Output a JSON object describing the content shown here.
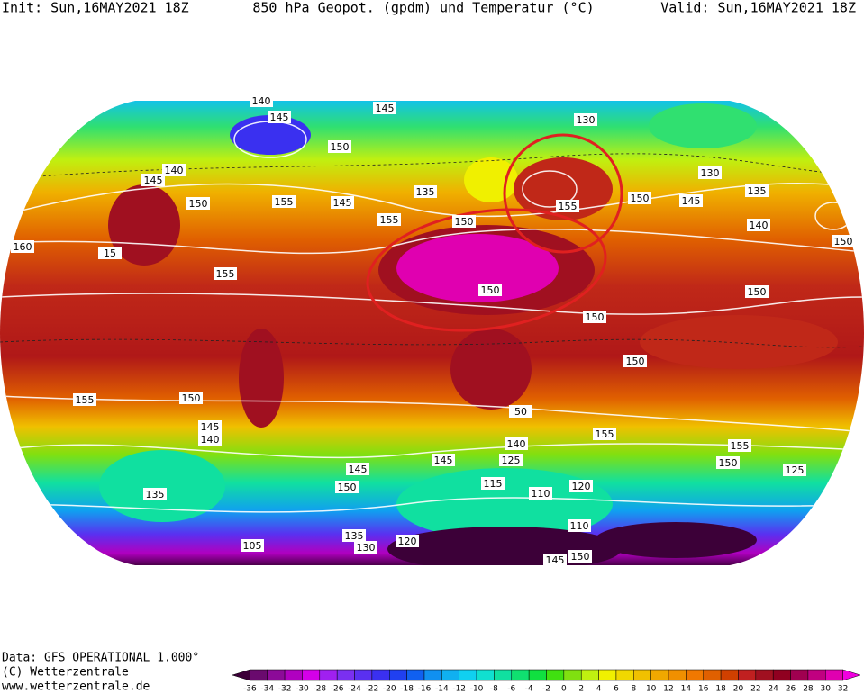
{
  "header": {
    "init": "Init: Sun,16MAY2021 18Z",
    "title": "850 hPa Geopot. (gpdm) und Temperatur (°C)",
    "valid": "Valid: Sun,16MAY2021 18Z"
  },
  "footer": {
    "source": "Data: GFS OPERATIONAL 1.000°",
    "copyright": "(C) Wetterzentrale",
    "url": "www.wetterzentrale.de"
  },
  "colorbar": {
    "ticks": [
      -36,
      -34,
      -32,
      -30,
      -28,
      -26,
      -24,
      -22,
      -20,
      -18,
      -16,
      -14,
      -12,
      -10,
      -8,
      -6,
      -4,
      -2,
      0,
      2,
      4,
      6,
      8,
      10,
      12,
      14,
      16,
      18,
      20,
      22,
      24,
      26,
      28,
      30,
      32
    ],
    "colors": [
      "#3c0038",
      "#6a0a6e",
      "#8c0a98",
      "#b000c0",
      "#d400e8",
      "#a020f0",
      "#7a30f0",
      "#5a30f0",
      "#3a30f0",
      "#2040f0",
      "#1060f0",
      "#1090f0",
      "#10b0f0",
      "#10d0f0",
      "#10e0d0",
      "#10e0a0",
      "#10e070",
      "#10e040",
      "#40e010",
      "#80e010",
      "#c0f010",
      "#f0f000",
      "#f0d800",
      "#f0c000",
      "#f0a800",
      "#f09000",
      "#f07800",
      "#e06000",
      "#d04000",
      "#c02020",
      "#a01020",
      "#900020",
      "#a00050",
      "#c00080",
      "#e000b0",
      "#f000e0"
    ]
  },
  "contour_labels": [
    "140",
    "145",
    "145",
    "130",
    "150",
    "140",
    "145",
    "150",
    "155",
    "145",
    "135",
    "155",
    "150",
    "155",
    "150",
    "145",
    "130",
    "135",
    "140",
    "150",
    "160",
    "15",
    "155",
    "150",
    "150",
    "150",
    "150",
    "155",
    "150",
    "145",
    "140",
    "50",
    "155",
    "140",
    "145",
    "145",
    "125",
    "155",
    "150",
    "125",
    "115",
    "110",
    "120",
    "150",
    "135",
    "135",
    "130",
    "105",
    "120",
    "110",
    "150",
    "145"
  ]
}
